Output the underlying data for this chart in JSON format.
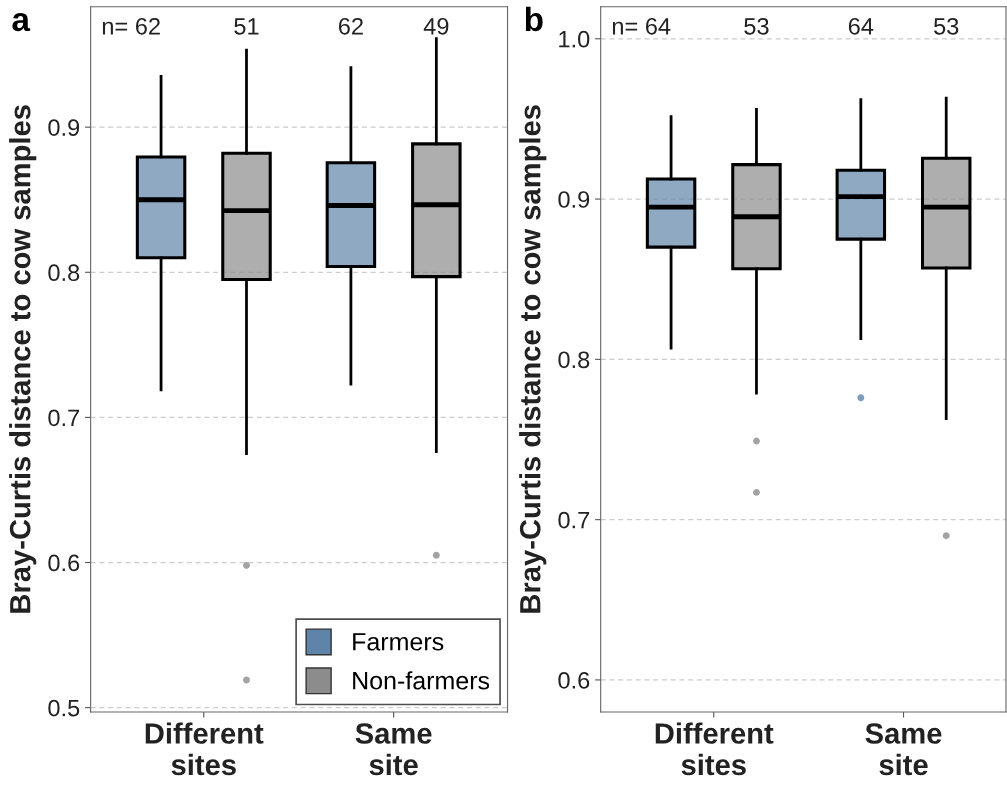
{
  "chart_data": [
    {
      "type": "box",
      "title": "a",
      "ylabel": "Bray-Curtis distance to cow samples",
      "categories": [
        "Different\nsites",
        "Same\nsite"
      ],
      "ylim": [
        0.497,
        0.983
      ],
      "yticks": [
        0.5,
        0.6,
        0.7,
        0.8,
        0.9
      ],
      "grid": "y",
      "legend": "bottom right",
      "annotations": [
        "n= 62",
        "51",
        "62",
        "49"
      ],
      "series": [
        {
          "name": "Farmers",
          "color": "#5f84a9",
          "boxes": [
            {
              "low": 0.719,
              "q1": 0.81,
              "median": 0.85,
              "q3": 0.8795,
              "high": 0.935
            },
            {
              "low": 0.723,
              "q1": 0.804,
              "median": 0.846,
              "q3": 0.8755,
              "high": 0.941
            }
          ]
        },
        {
          "name": "Non-farmers",
          "color": "#8c8c8c",
          "boxes": [
            {
              "low": 0.675,
              "q1": 0.795,
              "median": 0.8425,
              "q3": 0.882,
              "high": 0.953,
              "outliers": [
                0.598,
                0.519
              ]
            },
            {
              "low": 0.6765,
              "q1": 0.797,
              "median": 0.8465,
              "q3": 0.8885,
              "high": 0.961,
              "outliers": [
                0.605
              ]
            }
          ]
        }
      ]
    },
    {
      "type": "box",
      "title": "b",
      "ylabel": "Bray-Curtis distance to cow samples",
      "categories": [
        "Different\nsites",
        "Same\nsite"
      ],
      "ylim": [
        0.58,
        1.02
      ],
      "yticks": [
        0.6,
        0.7,
        0.8,
        0.9,
        {
          "value": 1.0,
          "label": "1.0"
        }
      ],
      "grid": "y",
      "annotations": [
        "n= 64",
        "53",
        "64",
        "53"
      ],
      "series": [
        {
          "color": "#5f84a9",
          "boxes": [
            {
              "low": 0.807,
              "q1": 0.87,
              "median": 0.895,
              "q3": 0.9125,
              "high": 0.9515
            },
            {
              "low": 0.813,
              "q1": 0.875,
              "median": 0.9015,
              "q3": 0.918,
              "high": 0.962,
              "outliers": [
                0.776
              ]
            }
          ]
        },
        {
          "color": "#8c8c8c",
          "boxes": [
            {
              "low": 0.779,
              "q1": 0.8565,
              "median": 0.889,
              "q3": 0.9215,
              "high": 0.956,
              "outliers": [
                0.749,
                0.717
              ]
            },
            {
              "low": 0.763,
              "q1": 0.857,
              "median": 0.895,
              "q3": 0.9255,
              "high": 0.963,
              "outliers": [
                0.69
              ]
            }
          ]
        }
      ]
    }
  ]
}
